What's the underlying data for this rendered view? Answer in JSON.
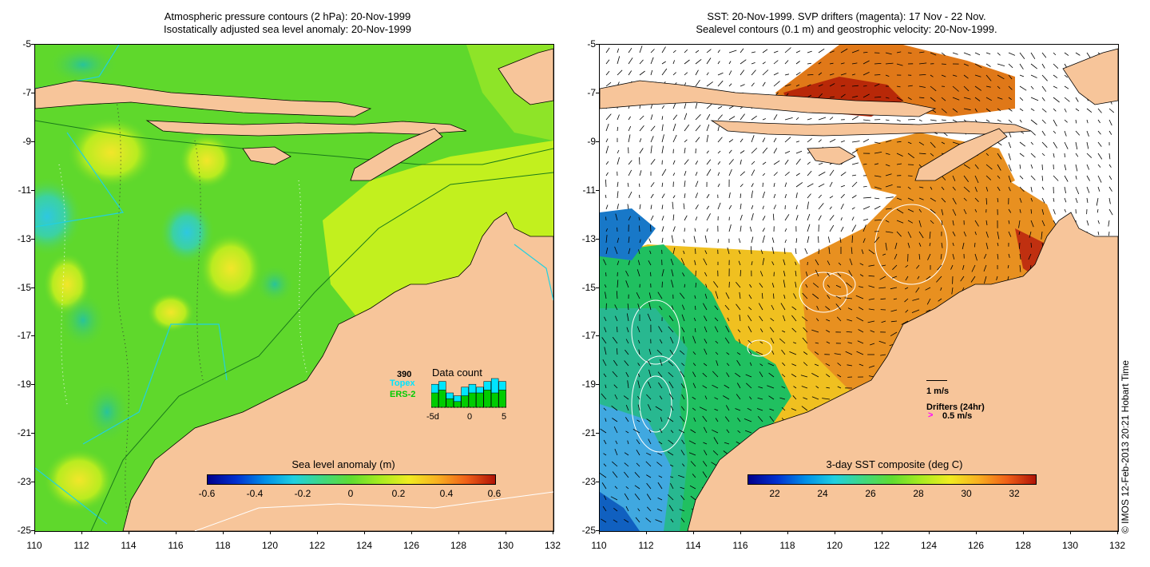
{
  "left_panel": {
    "title_line1": "Atmospheric pressure contours (2 hPa): 20-Nov-1999",
    "title_line2": "Isostatically adjusted sea level anomaly: 20-Nov-1999",
    "colorbar": {
      "title": "Sea level anomaly (m)",
      "labels": [
        "-0.6",
        "-0.4",
        "-0.2",
        "0",
        "0.2",
        "0.4",
        "0.6"
      ]
    },
    "data_count": {
      "title": "Data count",
      "value": "390",
      "topex_label": "Topex",
      "ers_label": "ERS-2",
      "x_labels": [
        "-5d",
        "0",
        "5"
      ],
      "topex_color": "#00e5ff",
      "ers_color": "#00cc00",
      "topex_counts": [
        8,
        9,
        5,
        4,
        7,
        8,
        7,
        9,
        10,
        9
      ],
      "ers_counts": [
        5,
        6,
        3,
        2,
        4,
        5,
        5,
        6,
        5,
        6
      ]
    }
  },
  "right_panel": {
    "title_line1": "SST: 20-Nov-1999. SVP drifters (magenta): 17 Nov - 22 Nov.",
    "title_line2": "Sealevel contours (0.1 m) and geostrophic velocity: 20-Nov-1999.",
    "colorbar": {
      "title": "3-day SST composite (deg C)",
      "labels": [
        "22",
        "24",
        "26",
        "28",
        "30",
        "32"
      ]
    },
    "velocity_legend": "1 m/s",
    "drifter_legend_title": "Drifters (24hr)",
    "drifter_legend_value": "0.5 m/s",
    "drifter_color": "#ff00ff"
  },
  "axes": {
    "y_ticks": [
      "-5",
      "-7",
      "-9",
      "-11",
      "-13",
      "-15",
      "-17",
      "-19",
      "-21",
      "-23",
      "-25"
    ],
    "x_ticks": [
      "110",
      "112",
      "114",
      "116",
      "118",
      "120",
      "122",
      "124",
      "126",
      "128",
      "130",
      "132"
    ]
  },
  "credit": "© IMOS 12-Feb-2013 20:21 Hobart Time",
  "colors": {
    "land": "#f7c59a",
    "ocean_green": "#5fd82c",
    "ocean_yellowgreen": "#c2f01e",
    "cloud_white": "#ffffff"
  }
}
